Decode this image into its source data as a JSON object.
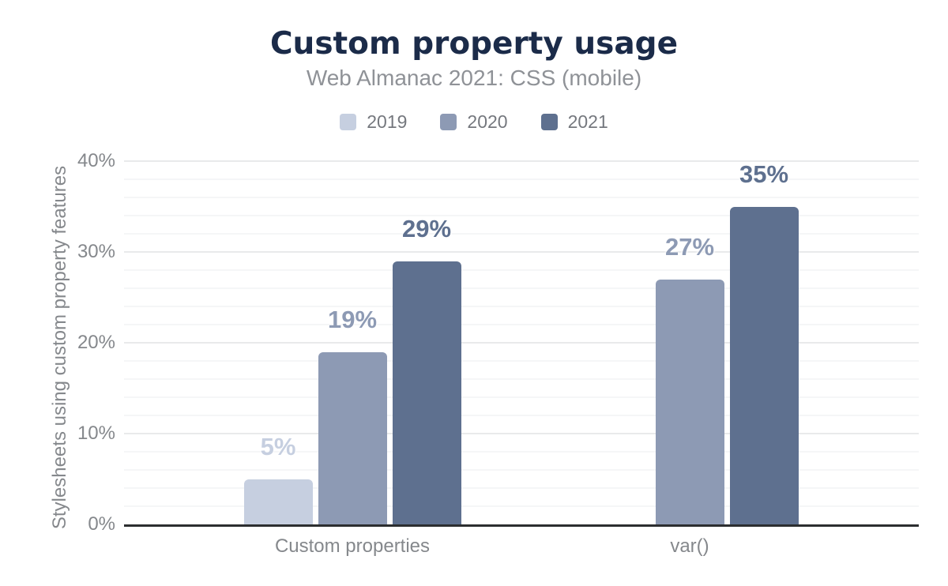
{
  "header": {
    "title": "Custom property usage",
    "subtitle": "Web Almanac 2021: CSS (mobile)"
  },
  "legend": {
    "position": "top",
    "items": [
      {
        "label": "2019",
        "color": "#c6cfe0"
      },
      {
        "label": "2020",
        "color": "#8d9ab4"
      },
      {
        "label": "2021",
        "color": "#5e708f"
      }
    ]
  },
  "chart_data": {
    "type": "bar",
    "title": "Custom property usage",
    "subtitle": "Web Almanac 2021: CSS (mobile)",
    "categories": [
      "Custom properties",
      "var()"
    ],
    "series": [
      {
        "name": "2019",
        "color": "#c6cfe0",
        "values": [
          5,
          null
        ],
        "data_labels": [
          "5%",
          null
        ]
      },
      {
        "name": "2020",
        "color": "#8d9ab4",
        "values": [
          19,
          27
        ],
        "data_labels": [
          "19%",
          "27%"
        ]
      },
      {
        "name": "2021",
        "color": "#5e708f",
        "values": [
          29,
          35
        ],
        "data_labels": [
          "29%",
          "35%"
        ]
      }
    ],
    "xlabel": "",
    "ylabel": "Stylesheets using custom property features",
    "ylim": [
      0,
      40
    ],
    "yticks": [
      {
        "value": 0,
        "label": "0%"
      },
      {
        "value": 10,
        "label": "10%"
      },
      {
        "value": 20,
        "label": "20%"
      },
      {
        "value": 30,
        "label": "30%"
      },
      {
        "value": 40,
        "label": "40%"
      }
    ],
    "grid": {
      "visible": true,
      "major_step": 10,
      "minor_step": 2
    },
    "legend_position": "top"
  },
  "colors": {
    "background": "#ffffff",
    "title_text": "#1b2b49",
    "subtitle_text": "#8f9297",
    "legend_text": "#75787e",
    "axis_text": "#85888c",
    "axis_line": "#2c2e30",
    "grid_major": "#e9eaeb",
    "grid_minor": "#f5f6f7"
  }
}
